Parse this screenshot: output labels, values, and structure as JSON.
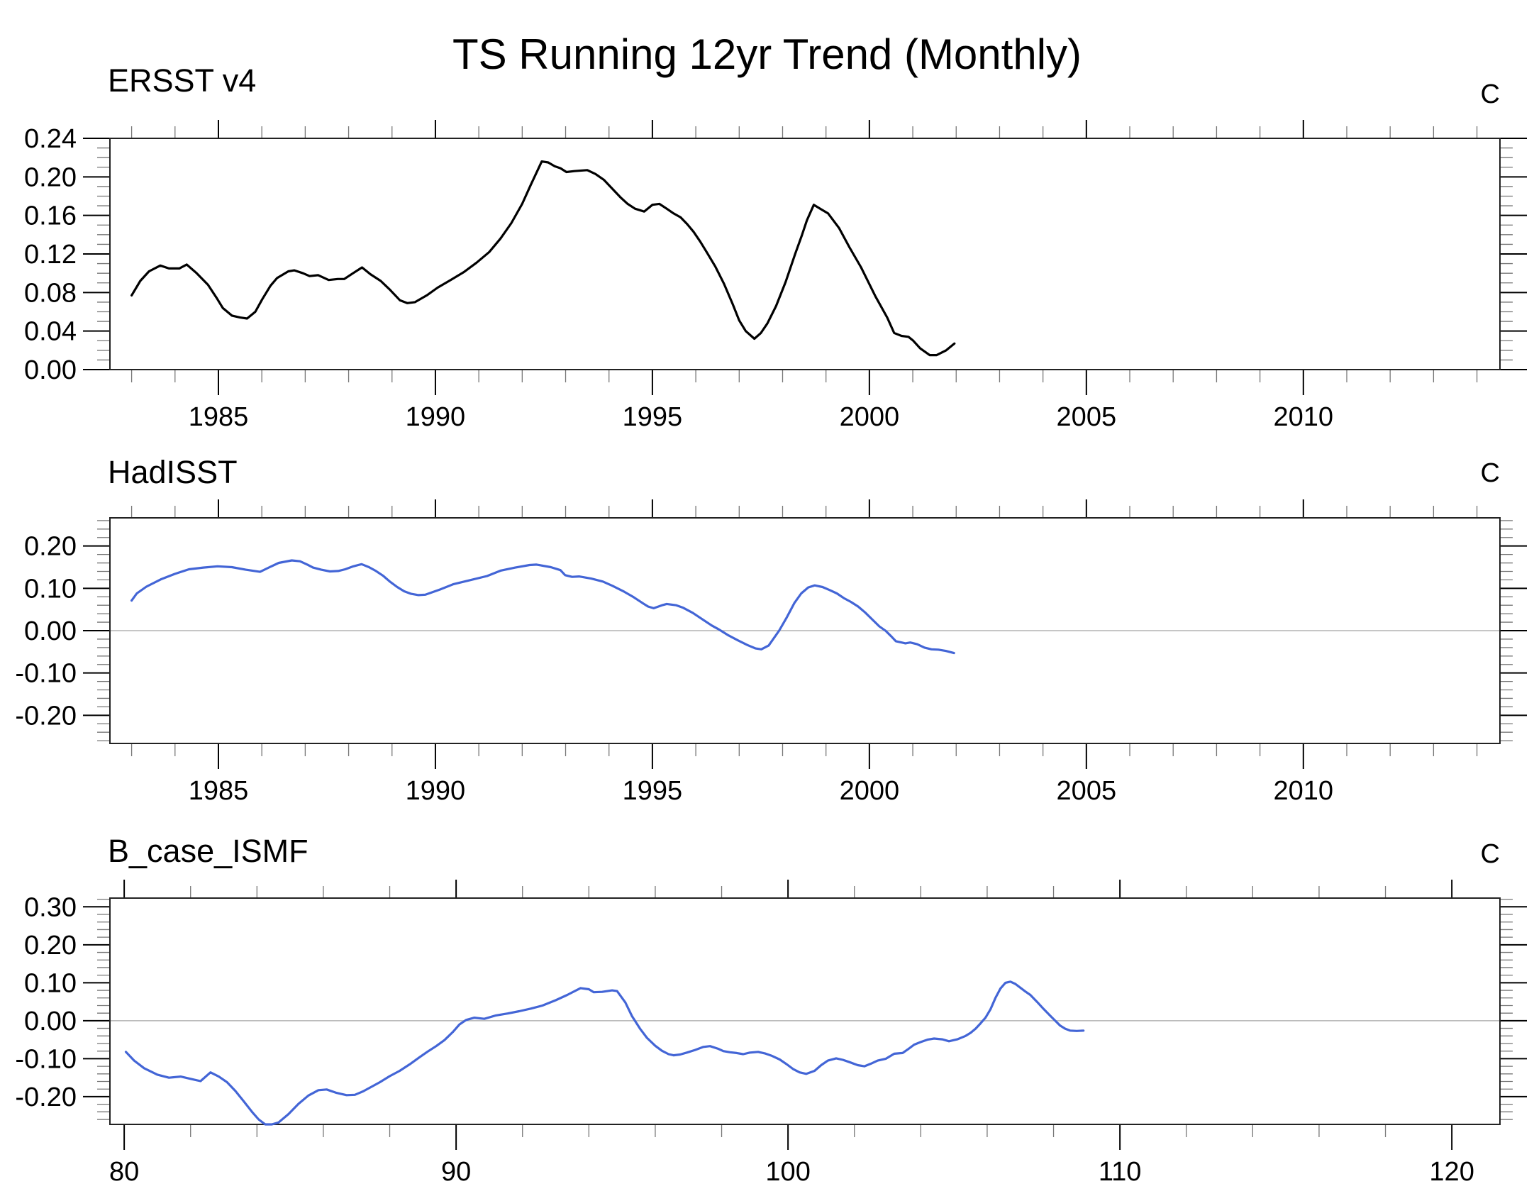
{
  "page_title": "TS Running 12yr Trend (Monthly)",
  "colors": {
    "background": "#ffffff",
    "frame": "#222222",
    "major_tick": "#000000",
    "minor_tick": "#777777",
    "zero_line": "#b3b3b3",
    "black_series": "#000000",
    "blue_series": "#4365d6"
  },
  "chart_data": [
    {
      "type": "line",
      "title": "ERSST v4",
      "unit_label": "C",
      "legend": null,
      "grid": false,
      "line_color": "#000000",
      "zero_line": false,
      "xlim": [
        1982.5,
        2014.53
      ],
      "ylim": [
        0.0,
        0.24
      ],
      "xtick_values": [
        1985,
        1990,
        1995,
        2000,
        2005,
        2010
      ],
      "xtick_labels": [
        "1985",
        "1990",
        "1995",
        "2000",
        "2005",
        "2010"
      ],
      "x_minor_step": 1,
      "ytick_values": [
        0.0,
        0.04,
        0.08,
        0.12,
        0.16,
        0.2,
        0.24
      ],
      "ytick_labels": [
        "0.00",
        "0.04",
        "0.08",
        "0.12",
        "0.16",
        "0.20",
        "0.24"
      ],
      "y_minor_step": 0.01,
      "x": [
        1983.0,
        1983.2,
        1983.4,
        1983.66,
        1983.86,
        1984.1,
        1984.27,
        1984.5,
        1984.76,
        1984.95,
        1985.1,
        1985.31,
        1985.5,
        1985.66,
        1985.85,
        1986.01,
        1986.2,
        1986.35,
        1986.61,
        1986.75,
        1986.95,
        1987.1,
        1987.3,
        1987.54,
        1987.75,
        1987.9,
        1988.1,
        1988.31,
        1988.5,
        1988.74,
        1988.95,
        1989.18,
        1989.35,
        1989.53,
        1989.8,
        1990.05,
        1990.35,
        1990.65,
        1990.95,
        1991.24,
        1991.5,
        1991.75,
        1992.0,
        1992.2,
        1992.45,
        1992.6,
        1992.75,
        1992.88,
        1993.02,
        1993.2,
        1993.5,
        1993.69,
        1993.88,
        1994.07,
        1994.26,
        1994.43,
        1994.6,
        1994.81,
        1995.0,
        1995.16,
        1995.33,
        1995.49,
        1995.65,
        1995.8,
        1995.95,
        1996.1,
        1996.25,
        1996.45,
        1996.65,
        1996.85,
        1997.0,
        1997.15,
        1997.35,
        1997.5,
        1997.65,
        1997.85,
        1998.07,
        1998.29,
        1998.45,
        1998.56,
        1998.72,
        1998.9,
        1999.05,
        1999.3,
        1999.54,
        1999.81,
        2000.14,
        2000.41,
        2000.57,
        2000.74,
        2000.9,
        2001.01,
        2001.17,
        2001.39,
        2001.55,
        2001.77,
        2001.96
      ],
      "values": [
        0.077,
        0.092,
        0.102,
        0.108,
        0.105,
        0.105,
        0.109,
        0.1,
        0.088,
        0.075,
        0.064,
        0.056,
        0.054,
        0.053,
        0.06,
        0.073,
        0.087,
        0.095,
        0.102,
        0.103,
        0.1,
        0.097,
        0.098,
        0.093,
        0.094,
        0.094,
        0.1,
        0.106,
        0.099,
        0.092,
        0.083,
        0.072,
        0.069,
        0.07,
        0.077,
        0.085,
        0.093,
        0.101,
        0.111,
        0.122,
        0.136,
        0.152,
        0.172,
        0.192,
        0.216,
        0.215,
        0.211,
        0.209,
        0.205,
        0.206,
        0.207,
        0.203,
        0.197,
        0.188,
        0.179,
        0.172,
        0.167,
        0.164,
        0.171,
        0.172,
        0.167,
        0.162,
        0.158,
        0.151,
        0.143,
        0.133,
        0.122,
        0.107,
        0.089,
        0.068,
        0.051,
        0.04,
        0.032,
        0.038,
        0.048,
        0.066,
        0.091,
        0.12,
        0.14,
        0.155,
        0.171,
        0.166,
        0.162,
        0.147,
        0.127,
        0.106,
        0.076,
        0.054,
        0.038,
        0.035,
        0.034,
        0.03,
        0.022,
        0.015,
        0.015,
        0.02,
        0.027
      ]
    },
    {
      "type": "line",
      "title": "HadISST",
      "unit_label": "C",
      "legend": null,
      "grid": false,
      "line_color": "#4365d6",
      "zero_line": true,
      "xlim": [
        1982.5,
        2014.53
      ],
      "ylim": [
        -0.2665,
        0.2665
      ],
      "xtick_values": [
        1985,
        1990,
        1995,
        2000,
        2005,
        2010
      ],
      "xtick_labels": [
        "1985",
        "1990",
        "1995",
        "2000",
        "2005",
        "2010"
      ],
      "x_minor_step": 1,
      "ytick_values": [
        -0.2,
        -0.1,
        0.0,
        0.1,
        0.2
      ],
      "ytick_labels": [
        "-0.20",
        "-0.10",
        "0.00",
        "0.10",
        "0.20"
      ],
      "y_minor_step": 0.02,
      "x": [
        1983.0,
        1983.12,
        1983.34,
        1983.67,
        1983.99,
        1984.32,
        1984.65,
        1984.98,
        1985.31,
        1985.63,
        1985.96,
        1986.18,
        1986.39,
        1986.69,
        1986.88,
        1987.05,
        1987.18,
        1987.37,
        1987.57,
        1987.76,
        1987.92,
        1988.11,
        1988.3,
        1988.47,
        1988.63,
        1988.79,
        1988.95,
        1989.12,
        1989.28,
        1989.44,
        1989.61,
        1989.77,
        1990.1,
        1990.42,
        1990.75,
        1991.19,
        1991.51,
        1991.84,
        1992.17,
        1992.33,
        1992.66,
        1992.88,
        1992.99,
        1993.15,
        1993.31,
        1993.59,
        1993.86,
        1994.08,
        1994.35,
        1994.57,
        1994.79,
        1994.9,
        1995.03,
        1995.22,
        1995.33,
        1995.55,
        1995.71,
        1995.93,
        1996.15,
        1996.37,
        1996.53,
        1996.75,
        1996.97,
        1997.19,
        1997.38,
        1997.51,
        1997.68,
        1997.92,
        1998.1,
        1998.27,
        1998.43,
        1998.59,
        1998.74,
        1998.92,
        1999.08,
        1999.25,
        1999.41,
        1999.57,
        1999.74,
        1999.9,
        2000.07,
        2000.23,
        2000.37,
        2000.5,
        2000.61,
        2000.83,
        2000.94,
        2001.1,
        2001.27,
        2001.43,
        2001.59,
        2001.76,
        2001.95
      ],
      "values": [
        0.071,
        0.088,
        0.104,
        0.121,
        0.134,
        0.145,
        0.149,
        0.152,
        0.15,
        0.144,
        0.139,
        0.15,
        0.16,
        0.166,
        0.164,
        0.156,
        0.149,
        0.144,
        0.14,
        0.141,
        0.145,
        0.152,
        0.157,
        0.15,
        0.141,
        0.13,
        0.116,
        0.103,
        0.093,
        0.087,
        0.084,
        0.085,
        0.097,
        0.11,
        0.118,
        0.129,
        0.142,
        0.149,
        0.155,
        0.156,
        0.15,
        0.143,
        0.131,
        0.127,
        0.128,
        0.123,
        0.116,
        0.106,
        0.092,
        0.079,
        0.064,
        0.057,
        0.053,
        0.06,
        0.063,
        0.06,
        0.054,
        0.042,
        0.027,
        0.012,
        0.003,
        -0.011,
        -0.023,
        -0.034,
        -0.042,
        -0.044,
        -0.035,
        0.0,
        0.032,
        0.065,
        0.088,
        0.102,
        0.107,
        0.103,
        0.096,
        0.088,
        0.077,
        0.068,
        0.057,
        0.043,
        0.026,
        0.01,
        0.0,
        -0.013,
        -0.025,
        -0.03,
        -0.028,
        -0.032,
        -0.04,
        -0.044,
        -0.045,
        -0.048,
        -0.053
      ]
    },
    {
      "type": "line",
      "title": "B_case_ISMF",
      "unit_label": "C",
      "legend": null,
      "grid": false,
      "line_color": "#4365d6",
      "zero_line": true,
      "xlim": [
        79.57,
        121.45
      ],
      "ylim": [
        -0.273,
        0.323
      ],
      "xtick_values": [
        80,
        90,
        100,
        110,
        120
      ],
      "xtick_labels": [
        "80",
        "90",
        "100",
        "110",
        "120"
      ],
      "x_minor_step": 2,
      "ytick_values": [
        -0.2,
        -0.1,
        0.0,
        0.1,
        0.2,
        0.3
      ],
      "ytick_labels": [
        "-0.20",
        "-0.10",
        "0.00",
        "0.10",
        "0.20",
        "0.30"
      ],
      "y_minor_step": 0.02,
      "x": [
        80.05,
        80.3,
        80.6,
        81.0,
        81.35,
        81.7,
        82.0,
        82.3,
        82.6,
        82.85,
        83.1,
        83.35,
        83.6,
        83.85,
        84.05,
        84.25,
        84.45,
        84.65,
        84.95,
        85.25,
        85.55,
        85.85,
        86.1,
        86.4,
        86.7,
        86.95,
        87.2,
        87.45,
        87.7,
        88.0,
        88.3,
        88.6,
        88.9,
        89.15,
        89.4,
        89.65,
        89.9,
        90.1,
        90.3,
        90.55,
        90.85,
        91.2,
        91.55,
        91.9,
        92.25,
        92.6,
        93.0,
        93.35,
        93.75,
        94.0,
        94.15,
        94.4,
        94.7,
        94.85,
        95.1,
        95.3,
        95.55,
        95.75,
        96.0,
        96.2,
        96.4,
        96.55,
        96.75,
        96.95,
        97.2,
        97.45,
        97.65,
        97.9,
        98.05,
        98.25,
        98.45,
        98.65,
        98.85,
        99.1,
        99.3,
        99.5,
        99.75,
        99.95,
        100.15,
        100.35,
        100.55,
        100.8,
        101.0,
        101.2,
        101.45,
        101.65,
        101.85,
        102.1,
        102.3,
        102.5,
        102.7,
        102.95,
        103.2,
        103.45,
        103.6,
        103.8,
        104.0,
        104.2,
        104.4,
        104.65,
        104.85,
        105.1,
        105.35,
        105.5,
        105.65,
        105.8,
        105.95,
        106.1,
        106.25,
        106.4,
        106.55,
        106.7,
        106.85,
        107.0,
        107.15,
        107.3,
        107.5,
        107.7,
        107.9,
        108.05,
        108.2,
        108.35,
        108.5,
        108.7,
        108.9
      ],
      "values": [
        -0.082,
        -0.105,
        -0.125,
        -0.142,
        -0.15,
        -0.147,
        -0.153,
        -0.159,
        -0.136,
        -0.147,
        -0.162,
        -0.185,
        -0.212,
        -0.24,
        -0.26,
        -0.274,
        -0.275,
        -0.268,
        -0.246,
        -0.219,
        -0.197,
        -0.183,
        -0.181,
        -0.19,
        -0.196,
        -0.195,
        -0.186,
        -0.174,
        -0.162,
        -0.146,
        -0.132,
        -0.115,
        -0.096,
        -0.081,
        -0.067,
        -0.051,
        -0.03,
        -0.01,
        0.002,
        0.008,
        0.005,
        0.014,
        0.019,
        0.025,
        0.032,
        0.04,
        0.054,
        0.068,
        0.086,
        0.083,
        0.075,
        0.076,
        0.08,
        0.078,
        0.048,
        0.012,
        -0.022,
        -0.045,
        -0.066,
        -0.079,
        -0.088,
        -0.091,
        -0.089,
        -0.084,
        -0.077,
        -0.069,
        -0.067,
        -0.074,
        -0.08,
        -0.083,
        -0.085,
        -0.088,
        -0.084,
        -0.082,
        -0.086,
        -0.092,
        -0.102,
        -0.114,
        -0.127,
        -0.136,
        -0.14,
        -0.132,
        -0.117,
        -0.105,
        -0.099,
        -0.103,
        -0.109,
        -0.117,
        -0.12,
        -0.113,
        -0.105,
        -0.1,
        -0.087,
        -0.085,
        -0.076,
        -0.063,
        -0.056,
        -0.05,
        -0.047,
        -0.049,
        -0.054,
        -0.049,
        -0.04,
        -0.032,
        -0.021,
        -0.007,
        0.008,
        0.03,
        0.06,
        0.085,
        0.1,
        0.103,
        0.097,
        0.087,
        0.077,
        0.068,
        0.05,
        0.031,
        0.013,
        0.0,
        -0.013,
        -0.021,
        -0.026,
        -0.027,
        -0.026
      ]
    }
  ]
}
